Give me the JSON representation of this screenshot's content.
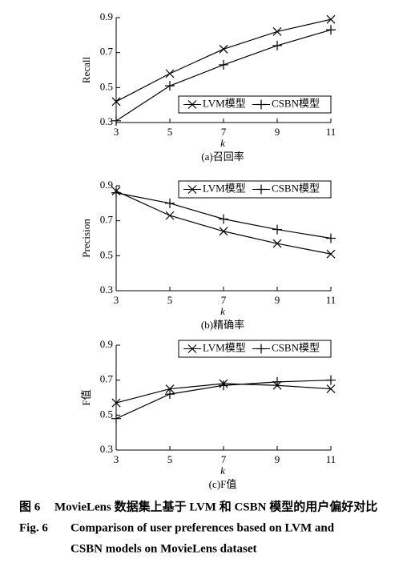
{
  "chart_data": [
    {
      "type": "line",
      "ylabel": "Recall",
      "xlabel": "k",
      "caption": "(a)召回率",
      "x": [
        3,
        5,
        7,
        9,
        11
      ],
      "xlim": [
        3,
        11
      ],
      "xticks": [
        3,
        5,
        7,
        9,
        11
      ],
      "ylim": [
        0.3,
        0.9
      ],
      "yticks": [
        0.3,
        0.5,
        0.7,
        0.9
      ],
      "legend": "lower right",
      "series": [
        {
          "name": "LVM模型",
          "color": "#000000",
          "marker": "x",
          "values": [
            0.42,
            0.58,
            0.72,
            0.82,
            0.89
          ]
        },
        {
          "name": "CSBN模型",
          "color": "#000000",
          "marker": "+",
          "values": [
            0.31,
            0.51,
            0.63,
            0.74,
            0.83
          ]
        }
      ]
    },
    {
      "type": "line",
      "ylabel": "Precision",
      "xlabel": "k",
      "caption": "(b)精确率",
      "x": [
        3,
        5,
        7,
        9,
        11
      ],
      "xlim": [
        3,
        11
      ],
      "xticks": [
        3,
        5,
        7,
        9,
        11
      ],
      "ylim": [
        0.3,
        0.9
      ],
      "yticks": [
        0.3,
        0.5,
        0.7,
        0.9
      ],
      "legend": "upper right",
      "series": [
        {
          "name": "LVM模型",
          "color": "#000000",
          "marker": "x",
          "values": [
            0.87,
            0.73,
            0.64,
            0.57,
            0.51
          ]
        },
        {
          "name": "CSBN模型",
          "color": "#000000",
          "marker": "+",
          "values": [
            0.86,
            0.8,
            0.71,
            0.65,
            0.6
          ]
        }
      ]
    },
    {
      "type": "line",
      "ylabel": "F值",
      "xlabel": "k",
      "caption": "(c)F值",
      "x": [
        3,
        5,
        7,
        9,
        11
      ],
      "xlim": [
        3,
        11
      ],
      "xticks": [
        3,
        5,
        7,
        9,
        11
      ],
      "ylim": [
        0.3,
        0.9
      ],
      "yticks": [
        0.3,
        0.5,
        0.7,
        0.9
      ],
      "legend": "upper right",
      "series": [
        {
          "name": "LVM模型",
          "color": "#000000",
          "marker": "x",
          "values": [
            0.57,
            0.65,
            0.68,
            0.67,
            0.65
          ]
        },
        {
          "name": "CSBN模型",
          "color": "#000000",
          "marker": "+",
          "values": [
            0.48,
            0.62,
            0.67,
            0.69,
            0.7
          ]
        }
      ]
    }
  ],
  "figure_caption": {
    "zh_label": "图 6",
    "zh": "MovieLens 数据集上基于 LVM 和 CSBN 模型的用户偏好对比",
    "en_label": "Fig. 6",
    "en_lines": [
      "Comparison of user preferences based on LVM and",
      "CSBN models on MovieLens dataset"
    ]
  }
}
